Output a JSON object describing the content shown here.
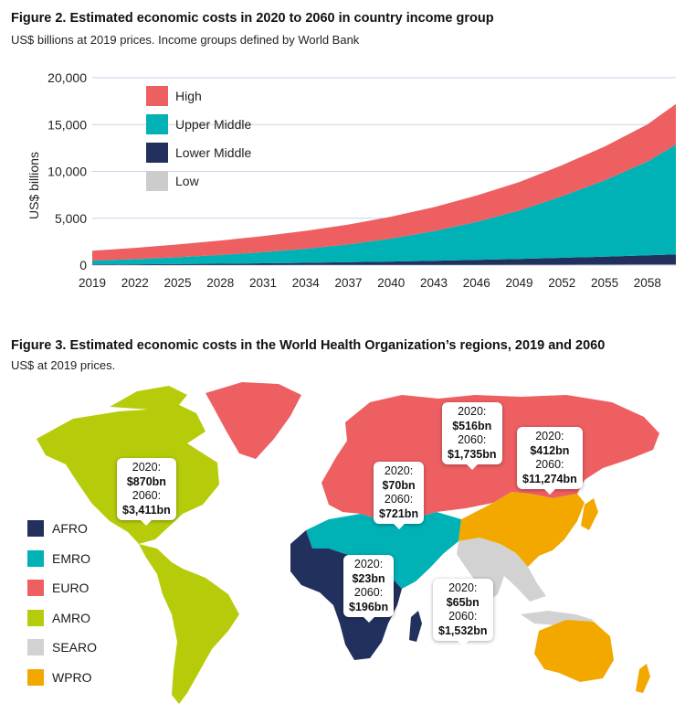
{
  "figure2": {
    "title": "Figure 2. Estimated economic costs in 2020 to 2060 in country income group",
    "subtitle": "US$ billions at 2019 prices. Income groups defined by World Bank"
  },
  "figure3": {
    "title": "Figure 3. Estimated economic costs in the World Health Organization’s regions, 2019 and 2060",
    "subtitle": "US$ at 2019 prices.",
    "legend": [
      {
        "label": "AFRO",
        "color": "#22305e"
      },
      {
        "label": "EMRO",
        "color": "#00b1b5"
      },
      {
        "label": "EURO",
        "color": "#ee5f62"
      },
      {
        "label": "AMRO",
        "color": "#b6cc0a"
      },
      {
        "label": "SEARO",
        "color": "#d2d2d2"
      },
      {
        "label": "WPRO",
        "color": "#f3a800"
      }
    ],
    "callouts": [
      {
        "region": "AMRO",
        "y2020_label": "2020:",
        "y2020": "$870bn",
        "y2060_label": "2060:",
        "y2060": "$3,411bn"
      },
      {
        "region": "EURO",
        "y2020_label": "2020:",
        "y2020": "$516bn",
        "y2060_label": "2060:",
        "y2060": "$1,735bn"
      },
      {
        "region": "WPRO",
        "y2020_label": "2020:",
        "y2020": "$412bn",
        "y2060_label": "2060:",
        "y2060": "$11,274bn"
      },
      {
        "region": "EMRO",
        "y2020_label": "2020:",
        "y2020": "$70bn",
        "y2060_label": "2060:",
        "y2060": "$721bn"
      },
      {
        "region": "AFRO",
        "y2020_label": "2020:",
        "y2020": "$23bn",
        "y2060_label": "2060:",
        "y2060": "$196bn"
      },
      {
        "region": "SEARO",
        "y2020_label": "2020:",
        "y2020": "$65bn",
        "y2060_label": "2060:",
        "y2060": "$1,532bn"
      }
    ]
  },
  "chart_data": {
    "type": "area",
    "stacked": true,
    "title": "Figure 2. Estimated economic costs in 2020 to 2060 in country income group",
    "subtitle": "US$ billions at 2019 prices. Income groups defined by World Bank",
    "ylabel": "US$ billions",
    "xlabel": "",
    "ylim": [
      0,
      20000
    ],
    "yticks": [
      "0",
      "5,000",
      "10,000",
      "15,000",
      "20,000"
    ],
    "xticks": [
      "2019",
      "2022",
      "2025",
      "2028",
      "2031",
      "2034",
      "2037",
      "2040",
      "2043",
      "2046",
      "2049",
      "2052",
      "2055",
      "2058"
    ],
    "x": [
      2019,
      2022,
      2025,
      2028,
      2031,
      2034,
      2037,
      2040,
      2043,
      2046,
      2049,
      2052,
      2055,
      2058,
      2060
    ],
    "legend_position": "top-left",
    "grid": "horizontal",
    "series": [
      {
        "name": "Low",
        "color": "#cccccc",
        "values": [
          5,
          6,
          8,
          10,
          12,
          15,
          18,
          22,
          26,
          31,
          36,
          42,
          48,
          55,
          60
        ]
      },
      {
        "name": "Lower Middle",
        "color": "#22305e",
        "values": [
          60,
          80,
          110,
          140,
          180,
          230,
          290,
          360,
          440,
          530,
          630,
          740,
          860,
          990,
          1080
        ]
      },
      {
        "name": "Upper Middle",
        "color": "#00b1b5",
        "values": [
          420,
          550,
          720,
          930,
          1180,
          1500,
          1900,
          2450,
          3150,
          4050,
          5150,
          6550,
          8150,
          10000,
          11700
        ]
      },
      {
        "name": "High",
        "color": "#ee5f62",
        "values": [
          1050,
          1210,
          1370,
          1540,
          1720,
          1910,
          2120,
          2340,
          2570,
          2810,
          3050,
          3330,
          3600,
          3970,
          4360
        ]
      }
    ]
  }
}
